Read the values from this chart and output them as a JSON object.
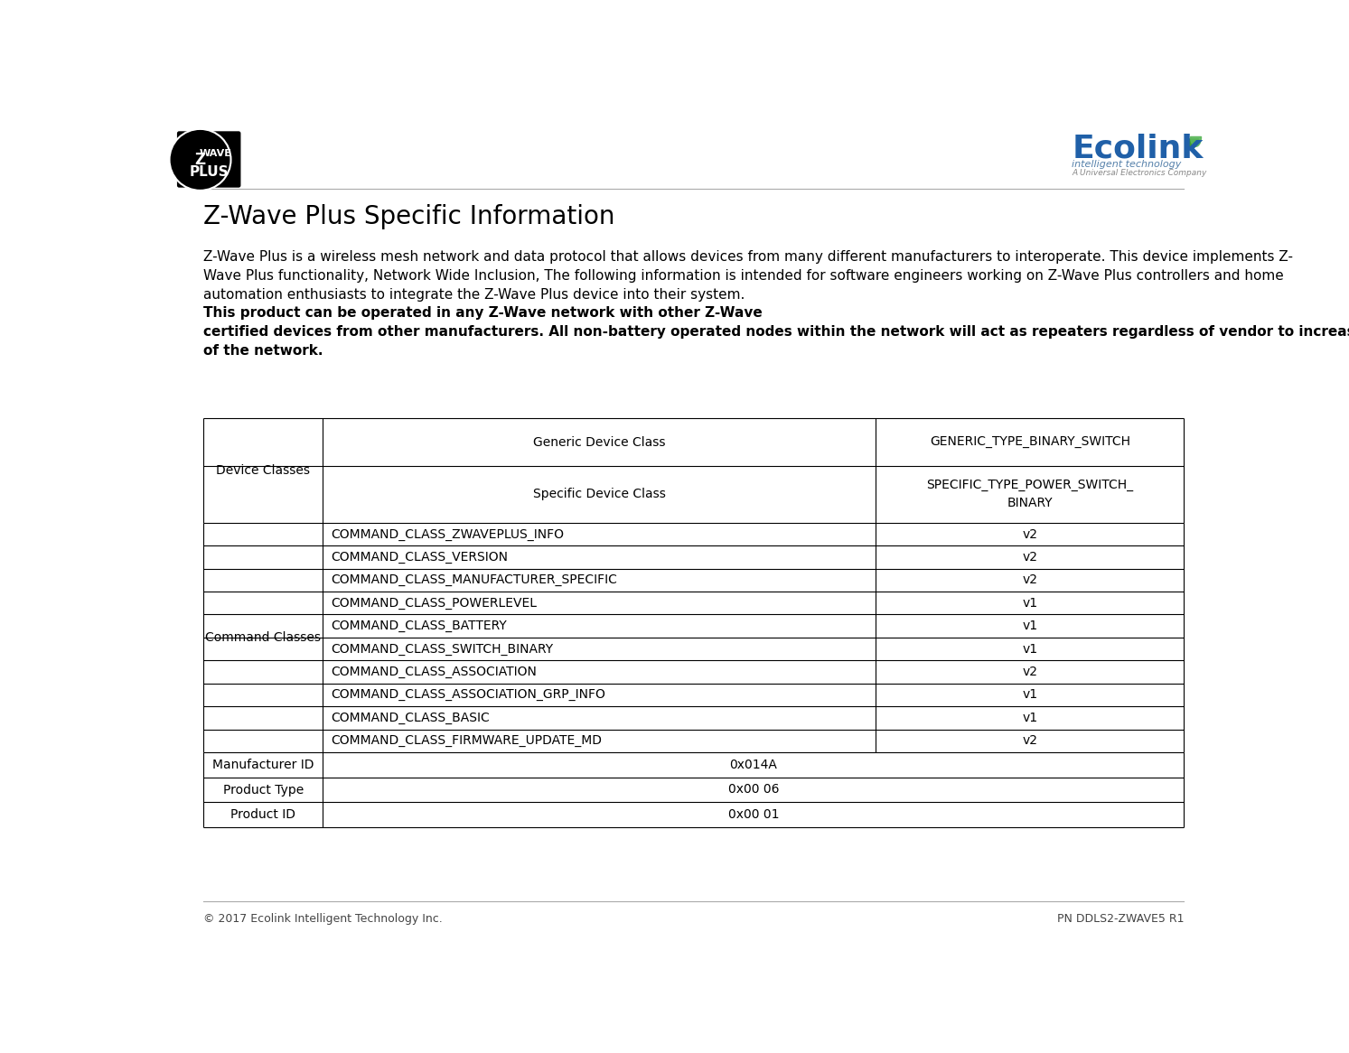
{
  "title": "Z-Wave Plus Specific Information",
  "footer_left": "© 2017 Ecolink Intelligent Technology Inc.",
  "footer_right": "PN DDLS2-ZWAVE5 R1",
  "para_lines": [
    {
      "text": "Z-Wave Plus is a wireless mesh network and data protocol that allows devices from many different manufacturers to interoperate. This device implements Z-",
      "bold": false
    },
    {
      "text": "Wave Plus functionality, Network Wide Inclusion, The following information is intended for software engineers working on Z-Wave Plus controllers and home",
      "bold": false
    },
    {
      "text": "automation enthusiasts to integrate the Z-Wave Plus device into their system.  ",
      "bold": false
    },
    {
      "text": "This product can be operated in any Z-Wave network with other Z-Wave",
      "bold": true
    },
    {
      "text": "certified devices from other manufacturers. All non-battery operated nodes within the network will act as repeaters regardless of vendor to increase reliability",
      "bold": true
    },
    {
      "text": "of the network.",
      "bold": true
    }
  ],
  "table": {
    "section1_label": "Device Classes",
    "section1_rows": [
      {
        "col1": "Generic Device Class",
        "col2": "GENERIC_TYPE_BINARY_SWITCH"
      },
      {
        "col1": "Specific Device Class",
        "col2": "SPECIFIC_TYPE_POWER_SWITCH_\nBINARY"
      }
    ],
    "section2_label": "Command Classes",
    "section2_rows": [
      {
        "col1": "COMMAND_CLASS_ZWAVEPLUS_INFO",
        "col2": "v2"
      },
      {
        "col1": "COMMAND_CLASS_VERSION",
        "col2": "v2"
      },
      {
        "col1": "COMMAND_CLASS_MANUFACTURER_SPECIFIC",
        "col2": "v2"
      },
      {
        "col1": "COMMAND_CLASS_POWERLEVEL",
        "col2": "v1"
      },
      {
        "col1": "COMMAND_CLASS_BATTERY",
        "col2": "v1"
      },
      {
        "col1": "COMMAND_CLASS_SWITCH_BINARY",
        "col2": "v1"
      },
      {
        "col1": "COMMAND_CLASS_ASSOCIATION",
        "col2": "v2"
      },
      {
        "col1": "COMMAND_CLASS_ASSOCIATION_GRP_INFO",
        "col2": "v1"
      },
      {
        "col1": "COMMAND_CLASS_BASIC",
        "col2": "v1"
      },
      {
        "col1": "COMMAND_CLASS_FIRMWARE_UPDATE_MD",
        "col2": "v2"
      }
    ],
    "section3_rows": [
      {
        "label": "Manufacturer ID",
        "value": "0x014A"
      },
      {
        "label": "Product Type",
        "value": "0x00 06"
      },
      {
        "label": "Product ID",
        "value": "0x00 01"
      }
    ]
  },
  "bg_color": "#ffffff",
  "text_color": "#000000",
  "table_border_color": "#000000",
  "font_size_title": 20,
  "font_size_body": 11,
  "font_size_table": 10,
  "font_size_footer": 9,
  "ecolink_color": "#2060a8",
  "ecolink_sub_color": "#5580aa",
  "ecolink_tiny_color": "#888888",
  "leaf_color": "#3a9c2e"
}
